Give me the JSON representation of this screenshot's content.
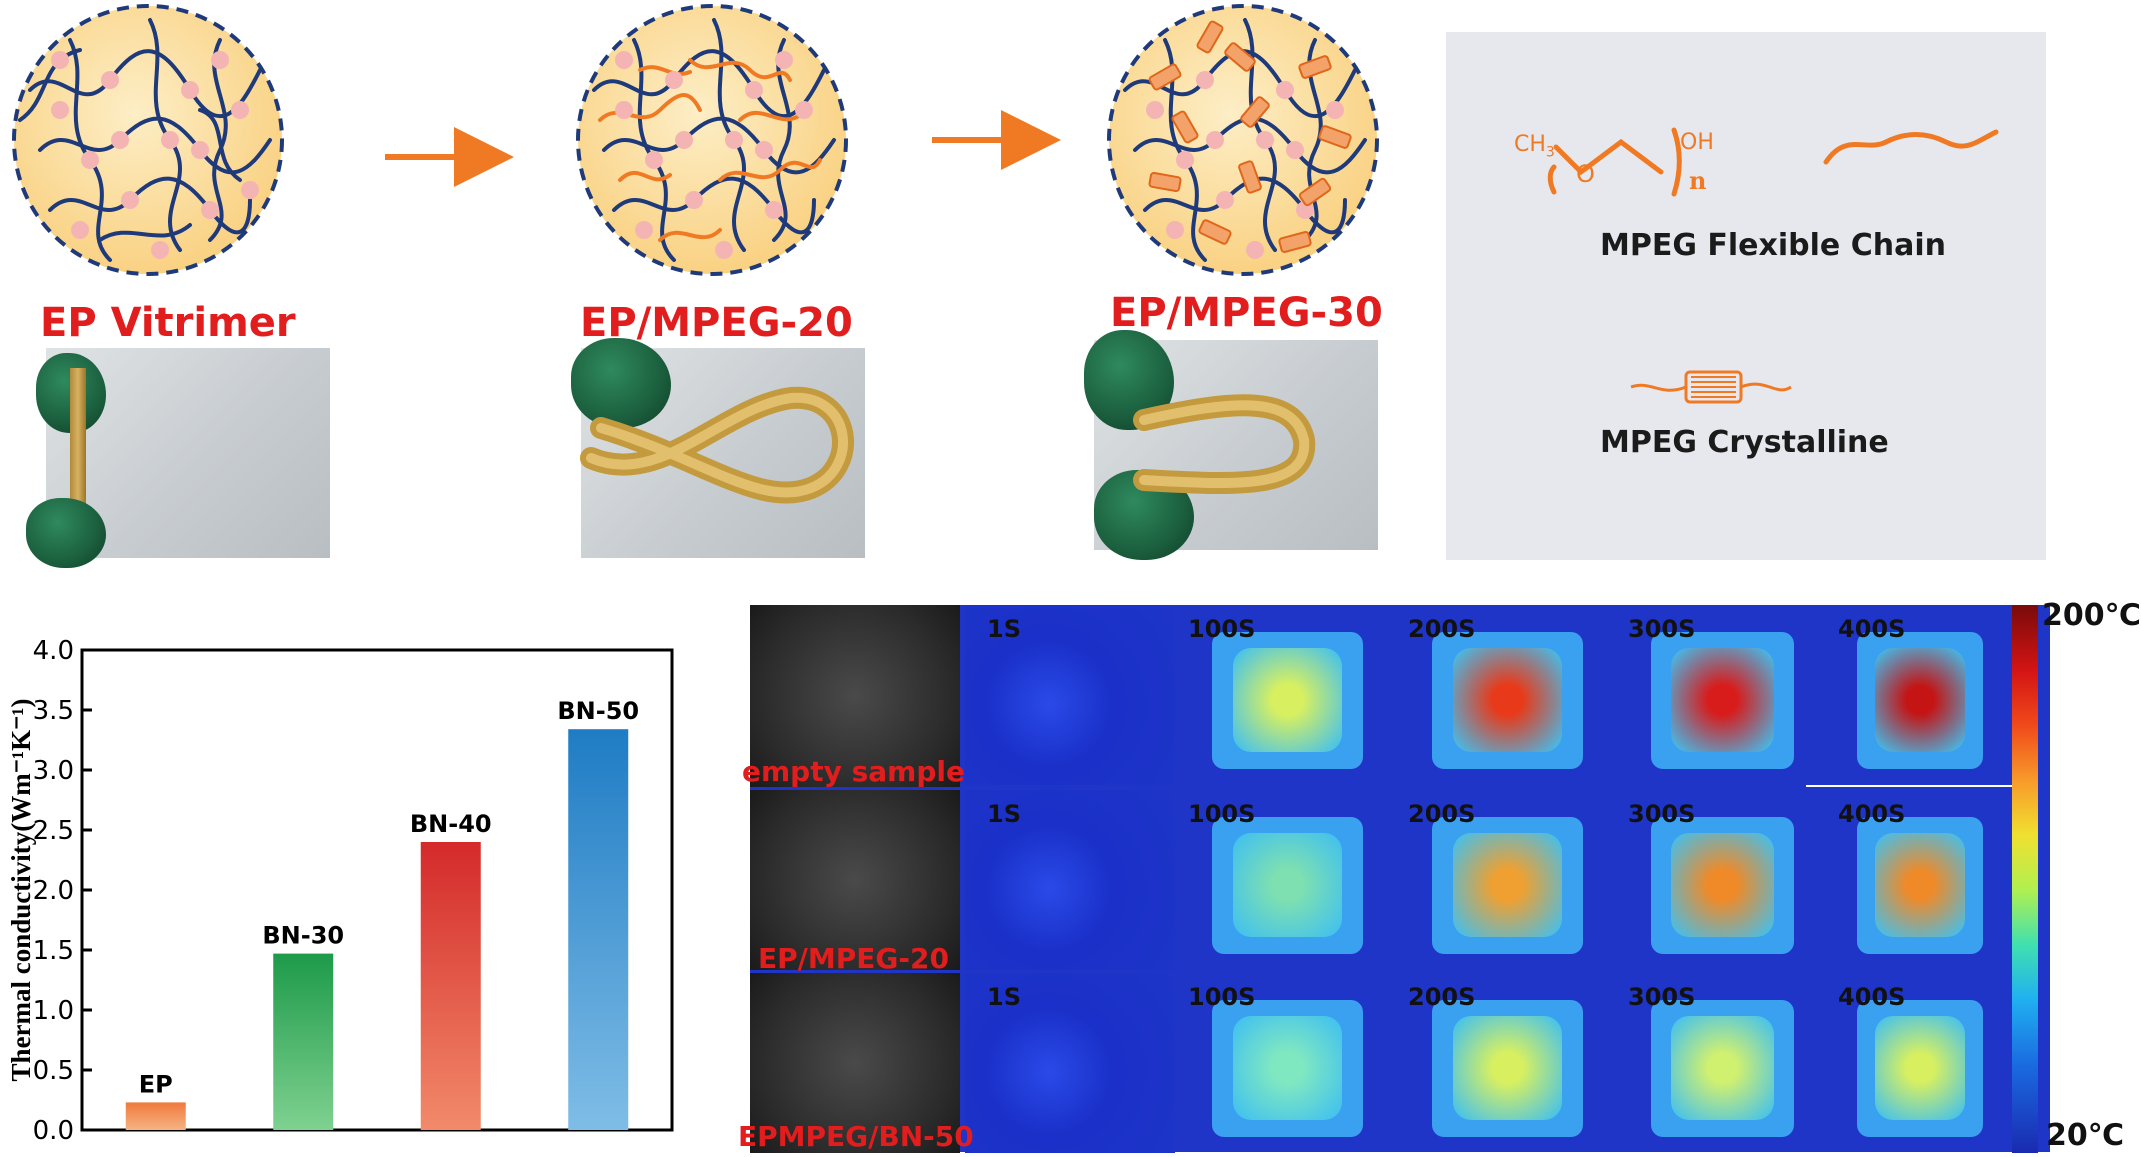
{
  "top": {
    "stage_titles": [
      "EP Vitrimer",
      "EP/MPEG-20",
      "EP/MPEG-30"
    ],
    "legend": {
      "formula_ch3": "CH",
      "formula_ch3_sub": "3",
      "formula_o": "O",
      "formula_oh": "OH",
      "formula_n": "n",
      "flexible_chain_label": "MPEG Flexible Chain",
      "crystalline_label": "MPEG Crystalline"
    },
    "colors": {
      "network_chain": "#1f3a7a",
      "crosslink_node": "#f4b4b4",
      "mpeg_orange": "#f07a24",
      "sphere_fill": "#fbdc9a",
      "title_red": "#e21d1d"
    }
  },
  "chart_data": {
    "type": "bar",
    "categories": [
      "EP",
      "BN-30",
      "BN-40",
      "BN-50"
    ],
    "values": [
      0.23,
      1.47,
      2.4,
      3.34
    ],
    "bar_colors": [
      [
        "#f5b385",
        "#f07a3c"
      ],
      [
        "#7fd190",
        "#1d9a4a"
      ],
      [
        "#f28a6a",
        "#d42a2a"
      ],
      [
        "#7fbde6",
        "#1f7cc4"
      ]
    ],
    "ylabel": "Thermal conductivity(Wm⁻¹K⁻¹)",
    "ylim": [
      0,
      4.0
    ],
    "yticks": [
      "0.0",
      "0.5",
      "1.0",
      "1.5",
      "2.0",
      "2.5",
      "3.0",
      "3.5",
      "4.0"
    ],
    "grid": false
  },
  "thermal": {
    "row_labels": [
      "empty sample",
      "EP/MPEG-20",
      "EPMPEG/BN-50"
    ],
    "time_labels": [
      "1S",
      "100S",
      "200S",
      "300S",
      "400S"
    ],
    "scale_max": "200℃",
    "scale_min": "20℃",
    "peak_colors": [
      [
        "#1a3ad8",
        "#d8f060",
        "#e83a1a",
        "#d81c1c",
        "#c41414"
      ],
      [
        "#1a3ad8",
        "#7ee0b0",
        "#f0a030",
        "#f08a28",
        "#f08a28"
      ],
      [
        "#1a3ad8",
        "#80e8c0",
        "#d8f060",
        "#d0f070",
        "#d8f060"
      ]
    ]
  }
}
